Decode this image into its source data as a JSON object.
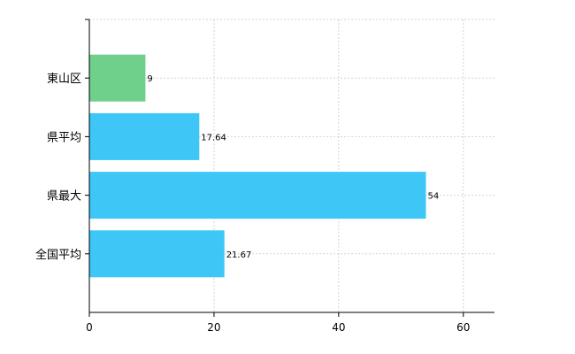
{
  "chart_data": {
    "type": "bar",
    "orientation": "horizontal",
    "title": "",
    "xlabel": "",
    "ylabel": "",
    "categories": [
      "東山区",
      "県平均",
      "県最大",
      "全国平均"
    ],
    "values": [
      9,
      17.64,
      54,
      21.67
    ],
    "value_labels": [
      "9",
      "17.64",
      "54",
      "21.67"
    ],
    "bar_colors": [
      "#6fd08c",
      "#3ec6f7",
      "#3ec6f7",
      "#3ec6f7"
    ],
    "xlim": [
      0,
      65
    ],
    "x_ticks": [
      0,
      20,
      40,
      60
    ],
    "x_tick_labels": [
      "0",
      "20",
      "40",
      "60"
    ],
    "grid": true,
    "legend": "none"
  },
  "colors": {
    "highlight_bar": "#6fd08c",
    "default_bar": "#3ec6f7",
    "grid": "#d3d3d3",
    "axis": "#000000"
  }
}
